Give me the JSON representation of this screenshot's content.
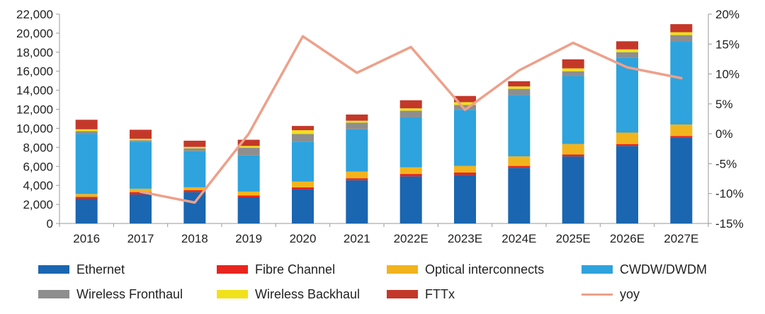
{
  "chart_data": {
    "type": "bar",
    "stacked": true,
    "categories": [
      "2016",
      "2017",
      "2018",
      "2019",
      "2020",
      "2021",
      "2022E",
      "2023E",
      "2024E",
      "2025E",
      "2026E",
      "2027E"
    ],
    "series": [
      {
        "name": "Ethernet",
        "color": "#1a66b1",
        "values": [
          2600,
          3050,
          3300,
          2750,
          3600,
          4550,
          4950,
          5100,
          5850,
          7050,
          8150,
          9000
        ]
      },
      {
        "name": "Fibre Channel",
        "color": "#e8251f",
        "values": [
          200,
          250,
          200,
          200,
          200,
          200,
          250,
          250,
          200,
          200,
          200,
          200
        ]
      },
      {
        "name": "Optical interconnects",
        "color": "#f2b41c",
        "values": [
          300,
          350,
          300,
          400,
          600,
          700,
          700,
          700,
          1000,
          1100,
          1200,
          1200
        ]
      },
      {
        "name": "CWDW/DWDM",
        "color": "#2ea3dd",
        "values": [
          6300,
          4950,
          3800,
          3800,
          4200,
          4450,
          5250,
          5900,
          6450,
          7150,
          7850,
          8700
        ]
      },
      {
        "name": "Wireless Fronthaul",
        "color": "#8e8e8e",
        "values": [
          300,
          150,
          300,
          800,
          800,
          700,
          700,
          500,
          650,
          500,
          600,
          700
        ]
      },
      {
        "name": "Wireless Backhaul",
        "color": "#f1e11a",
        "values": [
          200,
          150,
          150,
          200,
          400,
          200,
          250,
          300,
          250,
          300,
          300,
          300
        ]
      },
      {
        "name": "FTTx",
        "color": "#c4382a",
        "values": [
          1000,
          950,
          650,
          650,
          450,
          650,
          850,
          650,
          550,
          950,
          850,
          850
        ]
      }
    ],
    "line_series": {
      "name": "yoy",
      "color": "#eea08a",
      "axis": "right",
      "values": [
        null,
        -9.7,
        -11.5,
        0,
        16.3,
        10.2,
        14.5,
        4,
        10.6,
        15.2,
        11.1,
        9.3
      ]
    },
    "left_axis": {
      "ylim": [
        0,
        22000
      ],
      "ticks": [
        "0",
        "2,000",
        "4,000",
        "6,000",
        "8,000",
        "10,000",
        "12,000",
        "14,000",
        "16,000",
        "18,000",
        "20,000",
        "22,000"
      ]
    },
    "right_axis": {
      "ylim": [
        -15,
        20
      ],
      "ticks": [
        "-15%",
        "-10%",
        "-5%",
        "0%",
        "5%",
        "10%",
        "15%",
        "20%"
      ]
    },
    "legend_position": "bottom"
  }
}
